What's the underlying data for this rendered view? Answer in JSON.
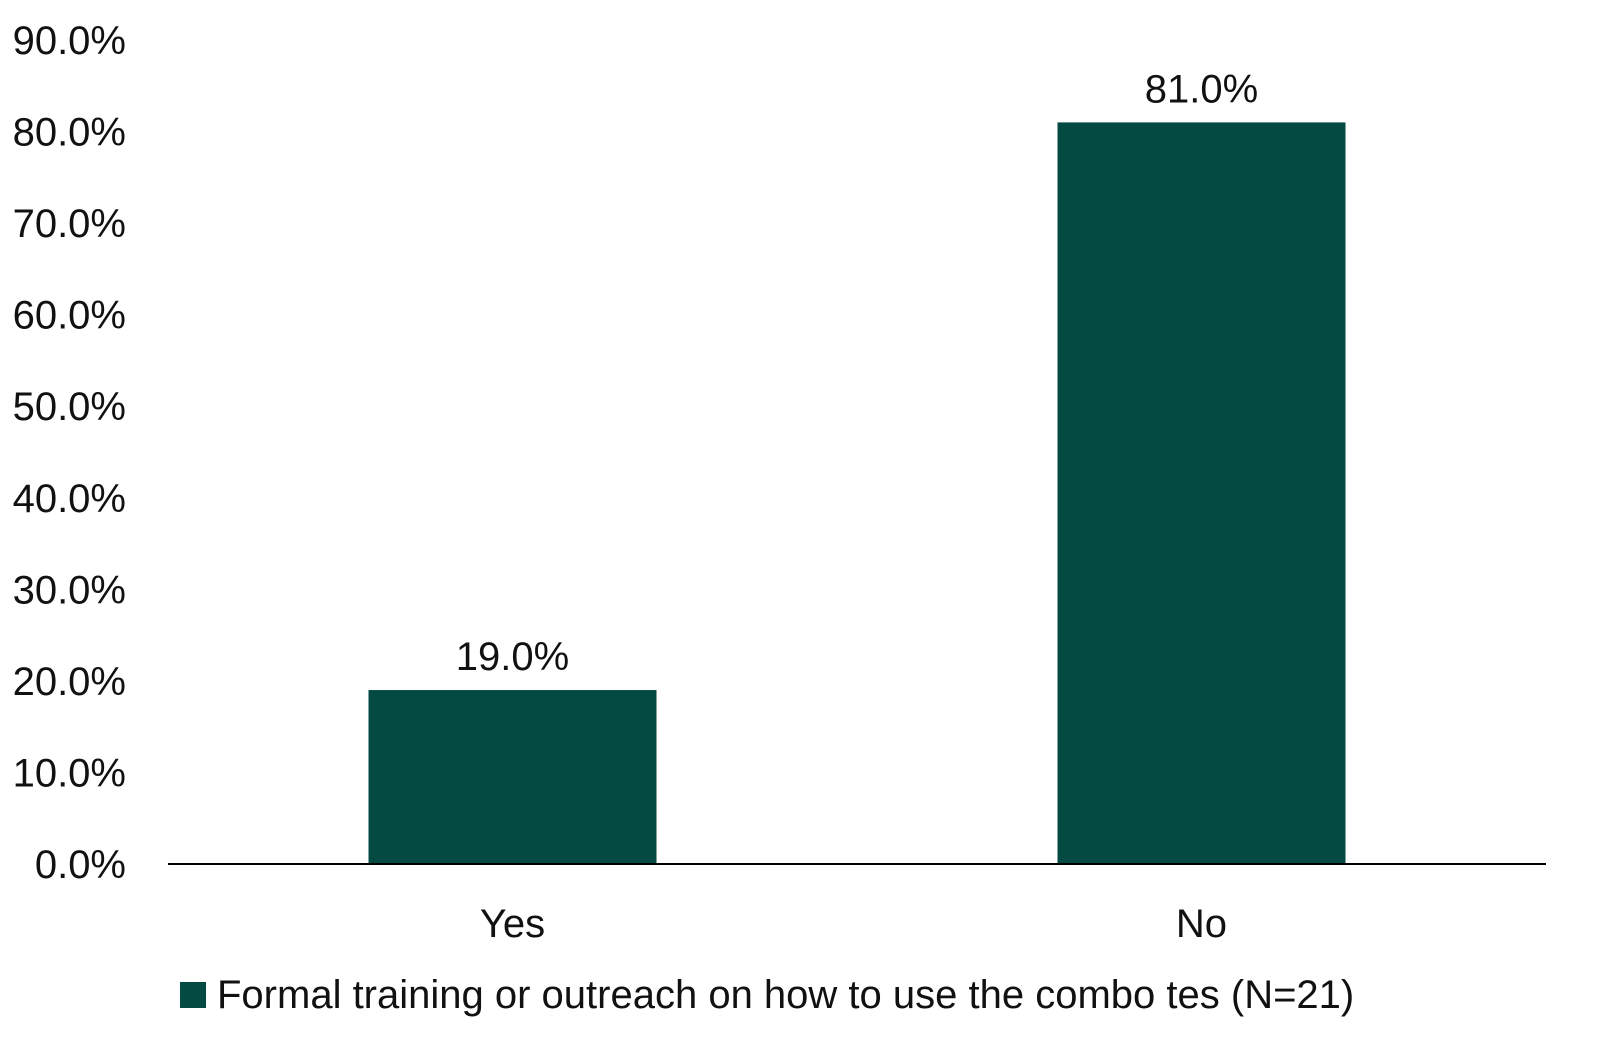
{
  "chart_data": {
    "type": "bar",
    "categories": [
      "Yes",
      "No"
    ],
    "series": [
      {
        "name": "Formal training or outreach on how to use the combo tes (N=21)",
        "values": [
          19.0,
          81.0
        ],
        "color": "#034a42"
      }
    ],
    "data_labels": [
      "19.0%",
      "81.0%"
    ],
    "y_ticks": [
      "0.0%",
      "10.0%",
      "20.0%",
      "30.0%",
      "40.0%",
      "50.0%",
      "60.0%",
      "70.0%",
      "80.0%",
      "90.0%"
    ],
    "ylim": [
      0,
      90
    ],
    "y_unit": "%",
    "grid": false,
    "legend_position": "bottom",
    "title": "",
    "xlabel": "",
    "ylabel": ""
  }
}
